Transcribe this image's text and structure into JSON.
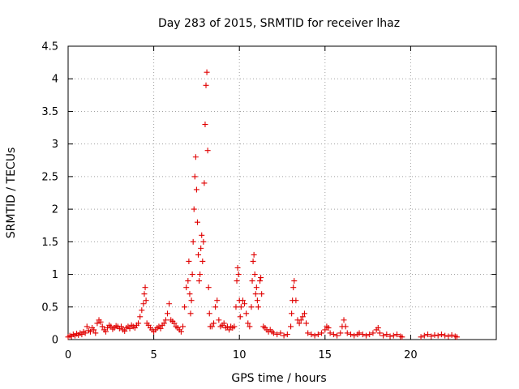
{
  "chart_data": {
    "type": "scatter",
    "title": "Day 283 of 2015, SRMTID for receiver lhaz",
    "xlabel": "GPS time / hours",
    "ylabel": "SRMTID / TECUs",
    "xlim": [
      0,
      25
    ],
    "ylim": [
      0,
      4.5
    ],
    "xticks": [
      0,
      5,
      10,
      15,
      20
    ],
    "xtick_labels": [
      "0",
      "5",
      "10",
      "15",
      "20"
    ],
    "yticks": [
      0,
      0.5,
      1,
      1.5,
      2,
      2.5,
      3,
      3.5,
      4,
      4.5
    ],
    "ytick_labels": [
      "0",
      "0.5",
      "1",
      "1.5",
      "2",
      "2.5",
      "3",
      "3.5",
      "4",
      "4.5"
    ],
    "grid": true,
    "marker": "+",
    "color": "#e00000",
    "series": [
      {
        "name": "SRMTID",
        "points": [
          [
            0.0,
            0.04
          ],
          [
            0.1,
            0.06
          ],
          [
            0.2,
            0.05
          ],
          [
            0.3,
            0.08
          ],
          [
            0.4,
            0.06
          ],
          [
            0.5,
            0.09
          ],
          [
            0.6,
            0.07
          ],
          [
            0.7,
            0.1
          ],
          [
            0.8,
            0.08
          ],
          [
            0.9,
            0.12
          ],
          [
            1.0,
            0.1
          ],
          [
            1.1,
            0.2
          ],
          [
            1.2,
            0.14
          ],
          [
            1.3,
            0.12
          ],
          [
            1.4,
            0.18
          ],
          [
            1.5,
            0.15
          ],
          [
            1.6,
            0.1
          ],
          [
            1.7,
            0.25
          ],
          [
            1.8,
            0.3
          ],
          [
            1.9,
            0.27
          ],
          [
            2.0,
            0.2
          ],
          [
            2.1,
            0.15
          ],
          [
            2.2,
            0.12
          ],
          [
            2.3,
            0.18
          ],
          [
            2.4,
            0.22
          ],
          [
            2.5,
            0.2
          ],
          [
            2.6,
            0.16
          ],
          [
            2.7,
            0.18
          ],
          [
            2.8,
            0.21
          ],
          [
            2.9,
            0.2
          ],
          [
            3.0,
            0.17
          ],
          [
            3.1,
            0.2
          ],
          [
            3.2,
            0.15
          ],
          [
            3.3,
            0.13
          ],
          [
            3.4,
            0.18
          ],
          [
            3.5,
            0.2
          ],
          [
            3.6,
            0.17
          ],
          [
            3.7,
            0.22
          ],
          [
            3.8,
            0.2
          ],
          [
            3.9,
            0.18
          ],
          [
            4.0,
            0.22
          ],
          [
            4.1,
            0.25
          ],
          [
            4.2,
            0.35
          ],
          [
            4.3,
            0.45
          ],
          [
            4.4,
            0.55
          ],
          [
            4.45,
            0.7
          ],
          [
            4.5,
            0.8
          ],
          [
            4.55,
            0.6
          ],
          [
            4.6,
            0.25
          ],
          [
            4.7,
            0.22
          ],
          [
            4.8,
            0.18
          ],
          [
            4.9,
            0.15
          ],
          [
            5.0,
            0.12
          ],
          [
            5.1,
            0.15
          ],
          [
            5.2,
            0.18
          ],
          [
            5.3,
            0.2
          ],
          [
            5.4,
            0.17
          ],
          [
            5.5,
            0.22
          ],
          [
            5.6,
            0.25
          ],
          [
            5.7,
            0.3
          ],
          [
            5.8,
            0.4
          ],
          [
            5.9,
            0.55
          ],
          [
            6.0,
            0.3
          ],
          [
            6.1,
            0.28
          ],
          [
            6.2,
            0.25
          ],
          [
            6.3,
            0.2
          ],
          [
            6.4,
            0.18
          ],
          [
            6.5,
            0.15
          ],
          [
            6.6,
            0.12
          ],
          [
            6.7,
            0.2
          ],
          [
            6.8,
            0.5
          ],
          [
            6.9,
            0.8
          ],
          [
            7.0,
            0.9
          ],
          [
            7.05,
            1.2
          ],
          [
            7.1,
            0.7
          ],
          [
            7.15,
            0.4
          ],
          [
            7.2,
            0.6
          ],
          [
            7.25,
            1.0
          ],
          [
            7.3,
            1.5
          ],
          [
            7.35,
            2.0
          ],
          [
            7.4,
            2.5
          ],
          [
            7.45,
            2.8
          ],
          [
            7.5,
            2.3
          ],
          [
            7.55,
            1.8
          ],
          [
            7.6,
            1.3
          ],
          [
            7.65,
            0.9
          ],
          [
            7.7,
            1.0
          ],
          [
            7.75,
            1.4
          ],
          [
            7.8,
            1.6
          ],
          [
            7.85,
            1.2
          ],
          [
            7.9,
            1.5
          ],
          [
            7.95,
            2.4
          ],
          [
            8.0,
            3.3
          ],
          [
            8.05,
            3.9
          ],
          [
            8.1,
            4.1
          ],
          [
            8.15,
            2.9
          ],
          [
            8.2,
            0.8
          ],
          [
            8.25,
            0.4
          ],
          [
            8.3,
            0.2
          ],
          [
            8.4,
            0.2
          ],
          [
            8.5,
            0.25
          ],
          [
            8.6,
            0.5
          ],
          [
            8.7,
            0.6
          ],
          [
            8.8,
            0.3
          ],
          [
            8.9,
            0.2
          ],
          [
            9.0,
            0.22
          ],
          [
            9.1,
            0.25
          ],
          [
            9.2,
            0.18
          ],
          [
            9.3,
            0.2
          ],
          [
            9.4,
            0.15
          ],
          [
            9.5,
            0.2
          ],
          [
            9.6,
            0.18
          ],
          [
            9.7,
            0.2
          ],
          [
            9.8,
            0.5
          ],
          [
            9.85,
            0.9
          ],
          [
            9.9,
            1.1
          ],
          [
            9.95,
            1.0
          ],
          [
            10.0,
            0.6
          ],
          [
            10.05,
            0.35
          ],
          [
            10.1,
            0.5
          ],
          [
            10.2,
            0.6
          ],
          [
            10.3,
            0.55
          ],
          [
            10.4,
            0.4
          ],
          [
            10.5,
            0.25
          ],
          [
            10.6,
            0.2
          ],
          [
            10.7,
            0.5
          ],
          [
            10.75,
            0.9
          ],
          [
            10.8,
            1.2
          ],
          [
            10.85,
            1.3
          ],
          [
            10.9,
            1.0
          ],
          [
            10.95,
            0.7
          ],
          [
            11.0,
            0.8
          ],
          [
            11.05,
            0.6
          ],
          [
            11.1,
            0.5
          ],
          [
            11.2,
            0.9
          ],
          [
            11.25,
            0.95
          ],
          [
            11.3,
            0.7
          ],
          [
            11.4,
            0.2
          ],
          [
            11.5,
            0.18
          ],
          [
            11.6,
            0.15
          ],
          [
            11.7,
            0.12
          ],
          [
            11.8,
            0.15
          ],
          [
            11.9,
            0.12
          ],
          [
            12.0,
            0.1
          ],
          [
            12.2,
            0.08
          ],
          [
            12.4,
            0.1
          ],
          [
            12.6,
            0.06
          ],
          [
            12.8,
            0.08
          ],
          [
            13.0,
            0.2
          ],
          [
            13.05,
            0.4
          ],
          [
            13.1,
            0.6
          ],
          [
            13.15,
            0.8
          ],
          [
            13.2,
            0.9
          ],
          [
            13.3,
            0.6
          ],
          [
            13.4,
            0.3
          ],
          [
            13.5,
            0.25
          ],
          [
            13.6,
            0.3
          ],
          [
            13.7,
            0.35
          ],
          [
            13.8,
            0.4
          ],
          [
            13.9,
            0.25
          ],
          [
            14.0,
            0.1
          ],
          [
            14.2,
            0.08
          ],
          [
            14.4,
            0.06
          ],
          [
            14.6,
            0.08
          ],
          [
            14.8,
            0.1
          ],
          [
            15.0,
            0.15
          ],
          [
            15.1,
            0.2
          ],
          [
            15.2,
            0.18
          ],
          [
            15.3,
            0.1
          ],
          [
            15.5,
            0.08
          ],
          [
            15.7,
            0.06
          ],
          [
            15.9,
            0.1
          ],
          [
            16.0,
            0.2
          ],
          [
            16.1,
            0.3
          ],
          [
            16.2,
            0.2
          ],
          [
            16.3,
            0.1
          ],
          [
            16.5,
            0.08
          ],
          [
            16.7,
            0.06
          ],
          [
            16.9,
            0.08
          ],
          [
            17.0,
            0.1
          ],
          [
            17.2,
            0.08
          ],
          [
            17.4,
            0.06
          ],
          [
            17.6,
            0.08
          ],
          [
            17.8,
            0.1
          ],
          [
            18.0,
            0.15
          ],
          [
            18.1,
            0.18
          ],
          [
            18.2,
            0.1
          ],
          [
            18.4,
            0.06
          ],
          [
            18.6,
            0.08
          ],
          [
            18.8,
            0.05
          ],
          [
            19.0,
            0.06
          ],
          [
            19.2,
            0.08
          ],
          [
            19.4,
            0.05
          ],
          [
            19.5,
            0.04
          ],
          [
            20.6,
            0.04
          ],
          [
            20.8,
            0.06
          ],
          [
            21.0,
            0.08
          ],
          [
            21.2,
            0.05
          ],
          [
            21.4,
            0.07
          ],
          [
            21.6,
            0.06
          ],
          [
            21.8,
            0.08
          ],
          [
            22.0,
            0.06
          ],
          [
            22.2,
            0.05
          ],
          [
            22.4,
            0.07
          ],
          [
            22.6,
            0.05
          ],
          [
            22.7,
            0.04
          ]
        ]
      }
    ]
  }
}
